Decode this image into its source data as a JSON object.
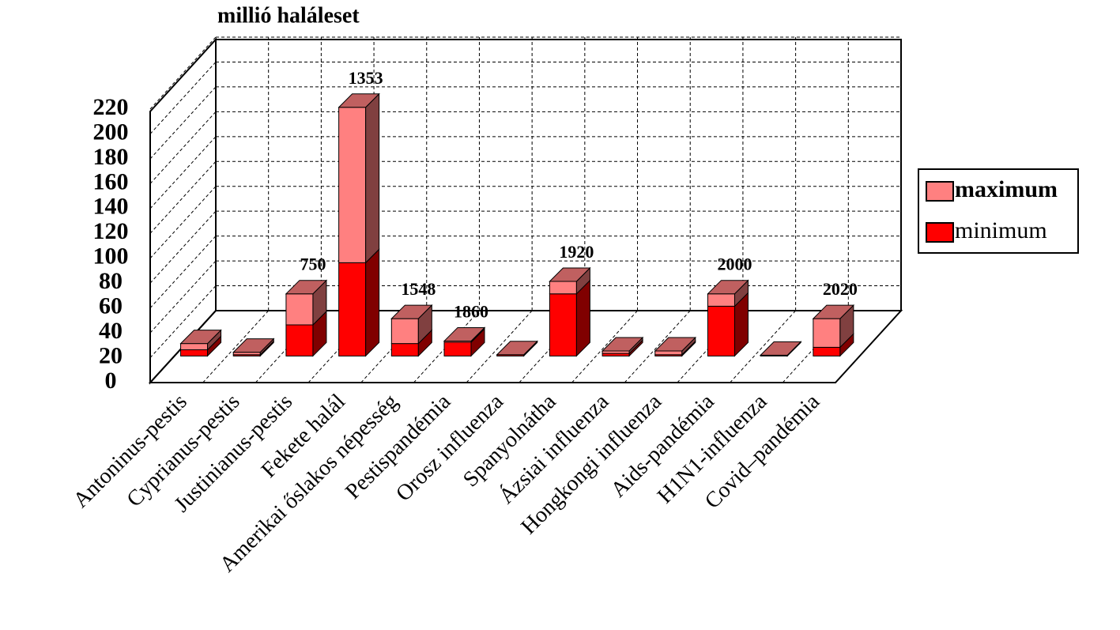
{
  "chart_data": {
    "type": "bar3d_stacked",
    "title": "millió haláleset",
    "categories": [
      "Antoninus-pestis",
      "Cyprianus-pestis",
      "Justinianus-pestis",
      "Fekete halál",
      "Amerikai őslakos népesség",
      "Pestispandémia",
      "Orosz influenza",
      "Spanyolnátha",
      "Ázsiai influenza",
      "Hongkongi influenza",
      "Aids-pandémia",
      "H1N1-influenza",
      "Covid–pandémia"
    ],
    "year_labels": [
      null,
      null,
      "750",
      "1353",
      "1548",
      "1860",
      null,
      "1920",
      null,
      null,
      "2000",
      null,
      "2020"
    ],
    "series": [
      {
        "name": "minimum",
        "color": "#ff0000",
        "side_color": "#800000",
        "values": [
          5,
          1,
          25,
          75,
          10,
          11,
          1,
          50,
          2,
          1,
          40,
          0.2,
          7
        ]
      },
      {
        "name": "maximum",
        "color": "#ff8080",
        "side_color": "#804040",
        "values": [
          5,
          2,
          25,
          125,
          20,
          1,
          0,
          10,
          2,
          3,
          10,
          0.4,
          23
        ]
      }
    ],
    "legend_order": [
      1,
      0
    ],
    "ylim": [
      0,
      220
    ],
    "yticks": [
      0,
      20,
      40,
      60,
      80,
      100,
      120,
      140,
      160,
      180,
      200,
      220
    ],
    "grid": true
  }
}
